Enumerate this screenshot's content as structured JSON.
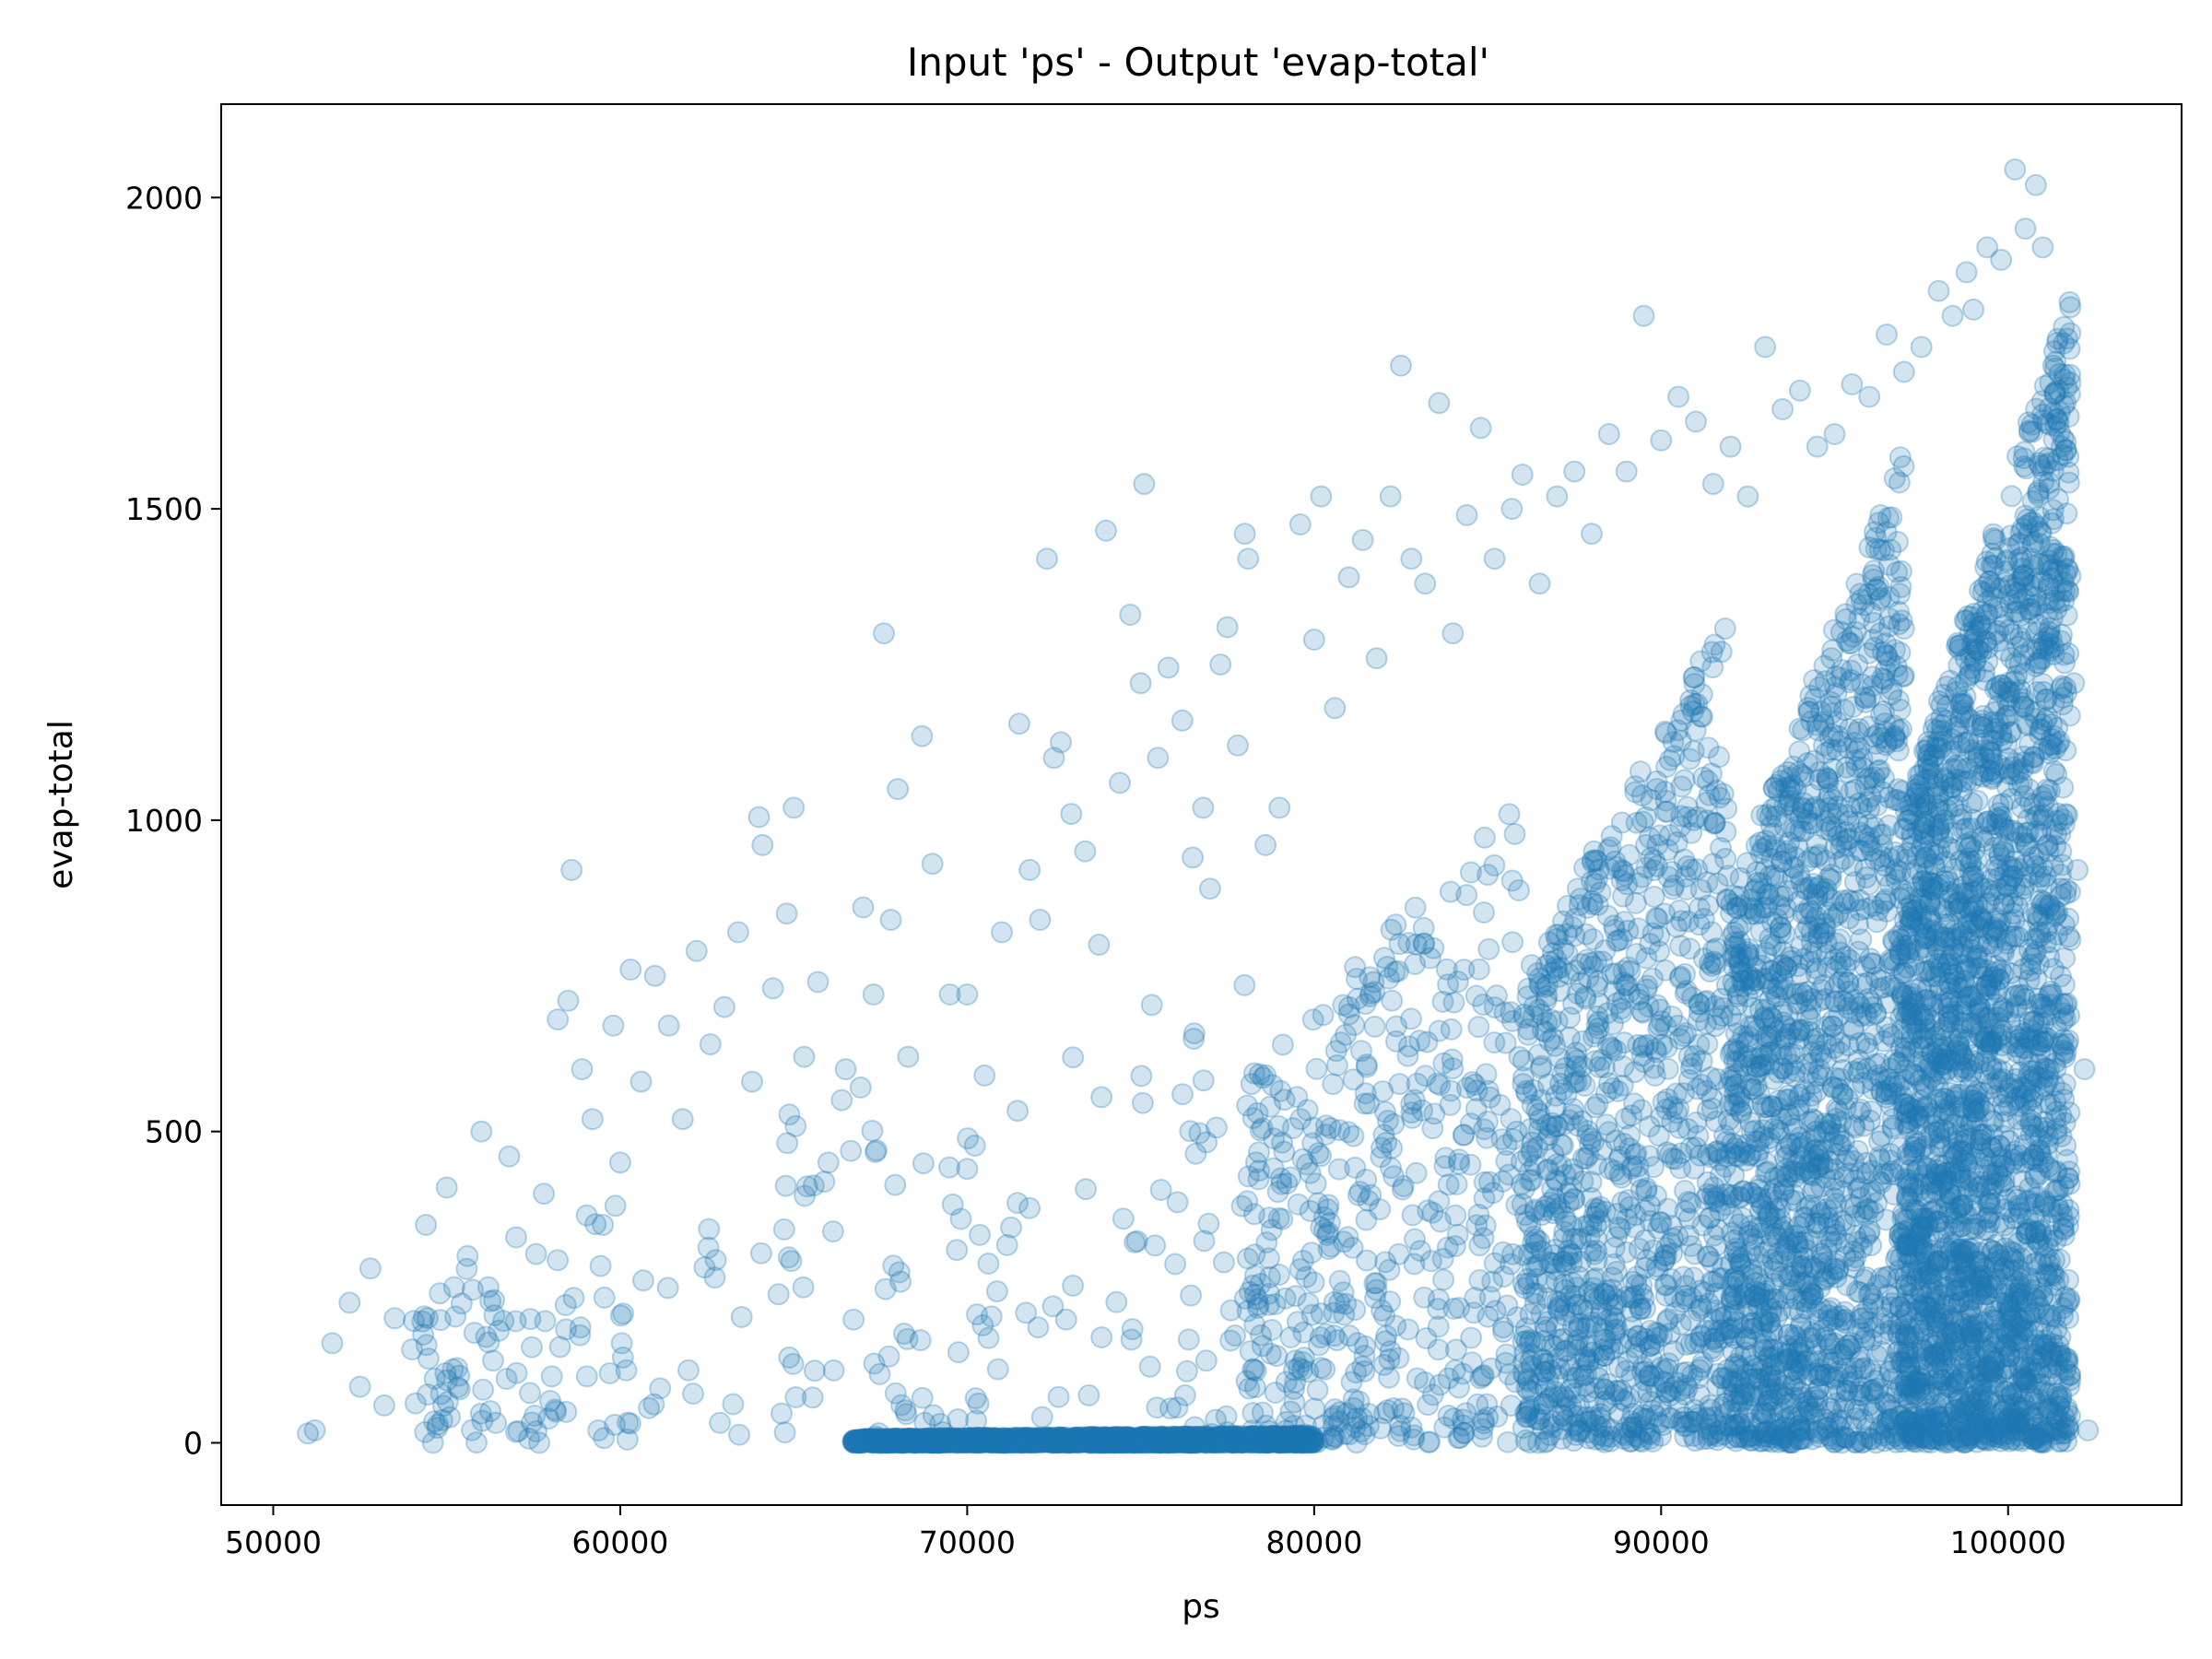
{
  "chart_data": {
    "type": "scatter",
    "title": "Input 'ps' - Output 'evap-total'",
    "xlabel": "ps",
    "ylabel": "evap-total",
    "xlim": [
      48500,
      105000
    ],
    "ylim": [
      -100,
      2150
    ],
    "x_ticks": [
      {
        "value": 50000,
        "label": "50000"
      },
      {
        "value": 60000,
        "label": "60000"
      },
      {
        "value": 70000,
        "label": "70000"
      },
      {
        "value": 80000,
        "label": "80000"
      },
      {
        "value": 90000,
        "label": "90000"
      },
      {
        "value": 100000,
        "label": "100000"
      }
    ],
    "y_ticks": [
      {
        "value": 0,
        "label": "0"
      },
      {
        "value": 500,
        "label": "500"
      },
      {
        "value": 1000,
        "label": "1000"
      },
      {
        "value": 1500,
        "label": "1500"
      },
      {
        "value": 2000,
        "label": "2000"
      }
    ],
    "grid": false,
    "legend": "none",
    "marker_color": "#1f77b4",
    "marker_alpha": 0.2,
    "series": [
      {
        "points": [
          [
            51000,
            15
          ],
          [
            51200,
            20
          ],
          [
            51700,
            160
          ],
          [
            52200,
            225
          ],
          [
            52500,
            90
          ],
          [
            52800,
            280
          ],
          [
            53200,
            60
          ],
          [
            53500,
            200
          ],
          [
            54000,
            150
          ],
          [
            54400,
            350
          ],
          [
            54800,
            240
          ],
          [
            55000,
            410
          ],
          [
            55300,
            120
          ],
          [
            55600,
            300
          ],
          [
            56000,
            500
          ],
          [
            56200,
            250
          ],
          [
            56500,
            180
          ],
          [
            56800,
            460
          ],
          [
            57000,
            330
          ],
          [
            57400,
            80
          ],
          [
            57800,
            400
          ],
          [
            58200,
            680
          ],
          [
            58500,
            710
          ],
          [
            58600,
            920
          ],
          [
            58900,
            600
          ],
          [
            59200,
            520
          ],
          [
            59500,
            350
          ],
          [
            59800,
            670
          ],
          [
            60000,
            450
          ],
          [
            60300,
            760
          ],
          [
            60600,
            580
          ],
          [
            61000,
            750
          ],
          [
            61400,
            670
          ],
          [
            61800,
            520
          ],
          [
            62200,
            790
          ],
          [
            62600,
            640
          ],
          [
            63000,
            700
          ],
          [
            63400,
            820
          ],
          [
            63800,
            580
          ],
          [
            64000,
            1005
          ],
          [
            64100,
            960
          ],
          [
            64400,
            730
          ],
          [
            64800,
            850
          ],
          [
            65000,
            1020
          ],
          [
            65300,
            620
          ],
          [
            65700,
            740
          ],
          [
            66000,
            450
          ],
          [
            66500,
            600
          ],
          [
            67000,
            860
          ],
          [
            67300,
            720
          ],
          [
            67600,
            1300
          ],
          [
            67800,
            840
          ],
          [
            68000,
            1050
          ],
          [
            68300,
            620
          ],
          [
            68700,
            1135
          ],
          [
            69000,
            930
          ],
          [
            69500,
            720
          ],
          [
            70000,
            720
          ],
          [
            70500,
            590
          ],
          [
            71000,
            820
          ],
          [
            71500,
            1155
          ],
          [
            71800,
            920
          ],
          [
            72100,
            840
          ],
          [
            72300,
            1420
          ],
          [
            72500,
            1100
          ],
          [
            72700,
            1125
          ],
          [
            73000,
            1010
          ],
          [
            73400,
            950
          ],
          [
            73800,
            800
          ],
          [
            74000,
            1465
          ],
          [
            74400,
            1060
          ],
          [
            74700,
            1330
          ],
          [
            75000,
            1220
          ],
          [
            75100,
            1540
          ],
          [
            75500,
            1100
          ],
          [
            75800,
            1245
          ],
          [
            76200,
            1160
          ],
          [
            76500,
            940
          ],
          [
            76800,
            1020
          ],
          [
            77000,
            890
          ],
          [
            77300,
            1250
          ],
          [
            77500,
            1310
          ],
          [
            77800,
            1120
          ],
          [
            78000,
            1460
          ],
          [
            78100,
            1420
          ],
          [
            78600,
            960
          ],
          [
            79000,
            1020
          ],
          [
            79600,
            1475
          ],
          [
            80000,
            1290
          ],
          [
            80200,
            1520
          ],
          [
            80600,
            1180
          ],
          [
            81000,
            1390
          ],
          [
            81400,
            1450
          ],
          [
            81800,
            1260
          ],
          [
            82200,
            1520
          ],
          [
            82500,
            1730
          ],
          [
            82800,
            1420
          ],
          [
            83200,
            1380
          ],
          [
            83600,
            1670
          ],
          [
            84000,
            1300
          ],
          [
            84400,
            1490
          ],
          [
            84800,
            1630
          ],
          [
            85200,
            1420
          ],
          [
            85700,
            1500
          ],
          [
            86000,
            1555
          ],
          [
            86500,
            1380
          ],
          [
            87000,
            1520
          ],
          [
            87500,
            1560
          ],
          [
            88000,
            1460
          ],
          [
            88500,
            1620
          ],
          [
            89000,
            1560
          ],
          [
            89500,
            1810
          ],
          [
            90000,
            1610
          ],
          [
            90500,
            1680
          ],
          [
            91000,
            1640
          ],
          [
            91500,
            1540
          ],
          [
            92000,
            1600
          ],
          [
            92500,
            1520
          ],
          [
            93000,
            1760
          ],
          [
            93500,
            1660
          ],
          [
            94000,
            1690
          ],
          [
            94500,
            1600
          ],
          [
            95000,
            1620
          ],
          [
            95500,
            1700
          ],
          [
            96000,
            1680
          ],
          [
            96500,
            1780
          ],
          [
            97000,
            1720
          ],
          [
            97500,
            1760
          ],
          [
            98000,
            1850
          ],
          [
            98400,
            1810
          ],
          [
            98800,
            1880
          ],
          [
            99000,
            1820
          ],
          [
            99400,
            1920
          ],
          [
            99800,
            1900
          ],
          [
            100200,
            2045
          ],
          [
            100500,
            1950
          ],
          [
            100800,
            2020
          ],
          [
            101000,
            1920
          ],
          [
            101300,
            1730
          ],
          [
            101600,
            1420
          ],
          [
            101900,
            1220
          ],
          [
            102000,
            920
          ],
          [
            102200,
            600
          ],
          [
            102300,
            20
          ],
          [
            101500,
            140
          ],
          [
            100900,
            70
          ]
        ]
      }
    ],
    "density_clusters": [
      {
        "x_range": [
          66700,
          80000
        ],
        "y_range": [
          0,
          12
        ],
        "points_per_1000": 140
      },
      {
        "x_range": [
          54000,
          60000
        ],
        "y_range": [
          0,
          420
        ],
        "points_per_1000": 14
      },
      {
        "x_range": [
          60000,
          68000
        ],
        "y_range": [
          0,
          650
        ],
        "points_per_1000": 8
      },
      {
        "x_range": [
          68000,
          78000
        ],
        "y_range": [
          0,
          800
        ],
        "points_per_1000": 10
      },
      {
        "x_range": [
          78000,
          86000
        ],
        "y_range": [
          0,
          1050
        ],
        "points_per_1000": 60
      },
      {
        "x_range": [
          86000,
          92000
        ],
        "y_range": [
          0,
          1350
        ],
        "points_per_1000": 180
      },
      {
        "x_range": [
          92000,
          97000
        ],
        "y_range": [
          0,
          1600
        ],
        "points_per_1000": 320
      },
      {
        "x_range": [
          97000,
          101800
        ],
        "y_range": [
          0,
          1850
        ],
        "points_per_1000": 520
      }
    ]
  }
}
